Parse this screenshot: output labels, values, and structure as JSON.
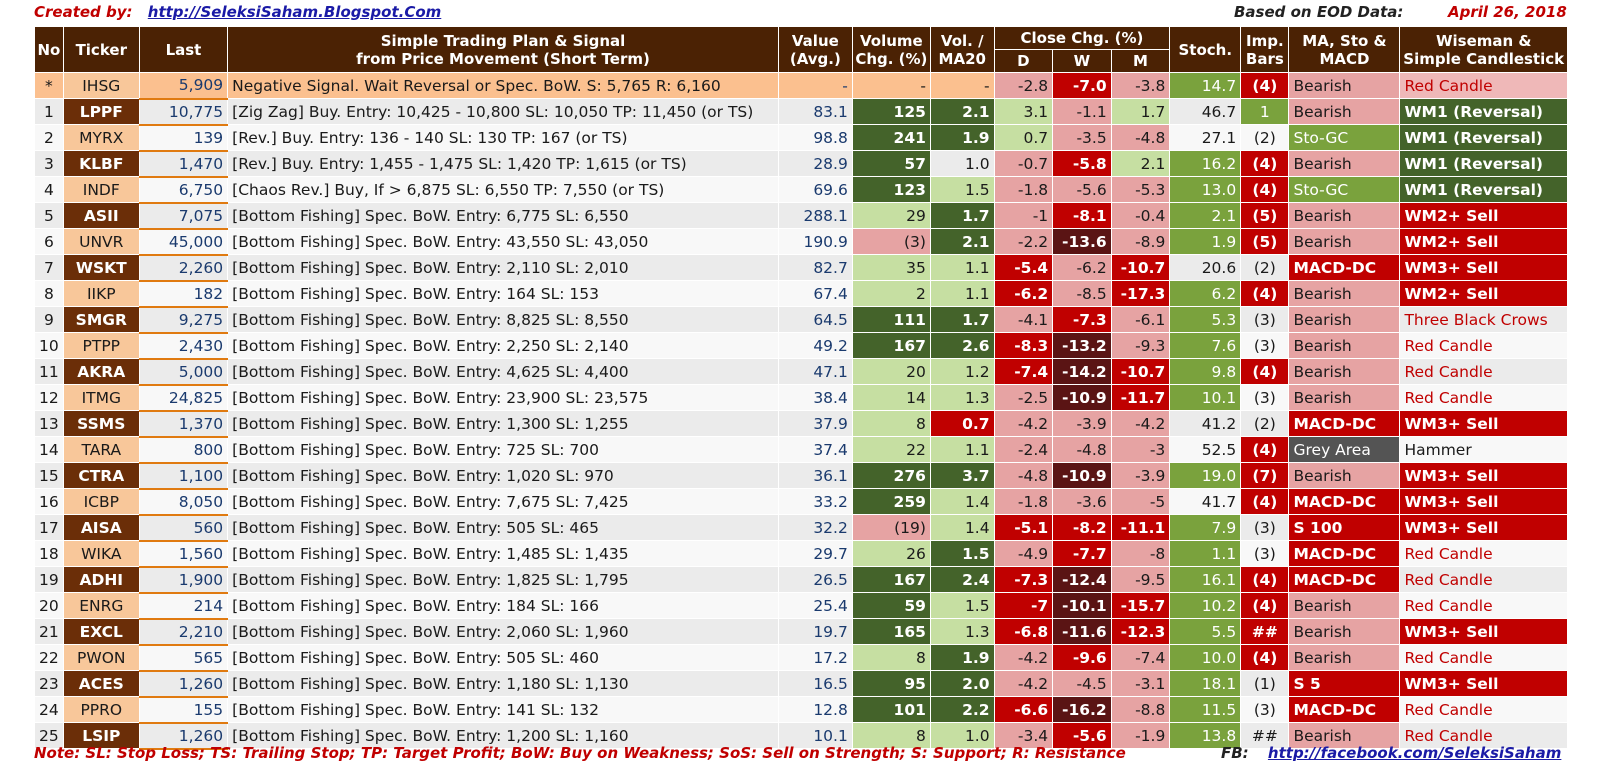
{
  "header": {
    "created_by_label": "Created by:",
    "created_by_link": "http://SeleksiSaham.Blogspot.Com",
    "based_on_label": "Based on EOD Data:",
    "date": "April 26, 2018"
  },
  "columns": {
    "no": "No",
    "ticker": "Ticker",
    "last": "Last",
    "plan": "Simple Trading Plan & Signal\nfrom Price Movement (Short Term)",
    "value": "Value\n(Avg.)",
    "volume": "Volume\nChg. (%)",
    "vol_ma20": "Vol. /\nMA20",
    "close_chg": "Close Chg. (%)",
    "close_d": "D",
    "close_w": "W",
    "close_m": "M",
    "stoch": "Stoch.",
    "imp": "Imp.\nBars",
    "ma": "MA, Sto &\nMACD",
    "wiseman": "Wiseman &\nSimple Candlestick"
  },
  "rows": [
    {
      "no": "*",
      "ticker": "IHSG",
      "last": "5,909",
      "plan": "Negative Signal.  Wait Reversal or Spec. BoW.  S:   5,765  R:  6,160",
      "value": "-",
      "volume": "-",
      "vol": "-",
      "d": "-2.8",
      "w": "-7.0",
      "m": "-3.8",
      "stoch": "14.7",
      "imp": "(4)",
      "ma": "Bearish",
      "ws": "Red Candle"
    },
    {
      "no": "1",
      "ticker": "LPPF",
      "last": "10,775",
      "plan": "[Zig Zag] Buy.  Entry: 10,425 - 10,800  SL: 10,050 TP: 11,450 (or TS)",
      "value": "83.1",
      "volume": "125",
      "vol": "2.1",
      "d": "3.1",
      "w": "-1.1",
      "m": "1.7",
      "stoch": "46.7",
      "imp": "1",
      "ma": "Bearish",
      "ws": "WM1 (Reversal)"
    },
    {
      "no": "2",
      "ticker": "MYRX",
      "last": "139",
      "plan": "[Rev.] Buy.  Entry:   136 -   140  SL:   130 TP:   167 (or TS)",
      "value": "98.8",
      "volume": "241",
      "vol": "1.9",
      "d": "0.7",
      "w": "-3.5",
      "m": "-4.8",
      "stoch": "27.1",
      "imp": "(2)",
      "ma": "Sto-GC",
      "ws": "WM1 (Reversal)"
    },
    {
      "no": "3",
      "ticker": "KLBF",
      "last": "1,470",
      "plan": "[Rev.] Buy.  Entry: 1,455 -  1,475  SL: 1,420 TP: 1,615 (or TS)",
      "value": "28.9",
      "volume": "57",
      "vol": "1.0",
      "d": "-0.7",
      "w": "-5.8",
      "m": "2.1",
      "stoch": "16.2",
      "imp": "(4)",
      "ma": "Bearish",
      "ws": "WM1 (Reversal)"
    },
    {
      "no": "4",
      "ticker": "INDF",
      "last": "6,750",
      "plan": "[Chaos Rev.] Buy, If >  6,875  SL: 6,550 TP: 7,550 (or TS)",
      "value": "69.6",
      "volume": "123",
      "vol": "1.5",
      "d": "-1.8",
      "w": "-5.6",
      "m": "-5.3",
      "stoch": "13.0",
      "imp": "(4)",
      "ma": "Sto-GC",
      "ws": "WM1 (Reversal)"
    },
    {
      "no": "5",
      "ticker": "ASII",
      "last": "7,075",
      "plan": "[Bottom Fishing]  Spec. BoW. Entry:  6,775  SL:  6,550",
      "value": "288.1",
      "volume": "29",
      "vol": "1.7",
      "d": "-1",
      "w": "-8.1",
      "m": "-0.4",
      "stoch": "2.1",
      "imp": "(5)",
      "ma": "Bearish",
      "ws": "WM2+ Sell"
    },
    {
      "no": "6",
      "ticker": "UNVR",
      "last": "45,000",
      "plan": "[Bottom Fishing]  Spec. BoW. Entry: 43,550  SL: 43,050",
      "value": "190.9",
      "volume": "(3)",
      "vol": "2.1",
      "d": "-2.2",
      "w": "-13.6",
      "m": "-8.9",
      "stoch": "1.9",
      "imp": "(5)",
      "ma": "Bearish",
      "ws": "WM2+ Sell"
    },
    {
      "no": "7",
      "ticker": "WSKT",
      "last": "2,260",
      "plan": "[Bottom Fishing]  Spec. BoW. Entry:  2,110  SL:  2,010",
      "value": "82.7",
      "volume": "35",
      "vol": "1.1",
      "d": "-5.4",
      "w": "-6.2",
      "m": "-10.7",
      "stoch": "20.6",
      "imp": "(2)",
      "ma": "MACD-DC",
      "ws": "WM3+ Sell"
    },
    {
      "no": "8",
      "ticker": "IIKP",
      "last": "182",
      "plan": "[Bottom Fishing]  Spec. BoW. Entry:   164  SL:   153",
      "value": "67.4",
      "volume": "2",
      "vol": "1.1",
      "d": "-6.2",
      "w": "-8.5",
      "m": "-17.3",
      "stoch": "6.2",
      "imp": "(4)",
      "ma": "Bearish",
      "ws": "WM2+ Sell"
    },
    {
      "no": "9",
      "ticker": "SMGR",
      "last": "9,275",
      "plan": "[Bottom Fishing]  Spec. BoW. Entry:  8,825  SL:  8,550",
      "value": "64.5",
      "volume": "111",
      "vol": "1.7",
      "d": "-4.1",
      "w": "-7.3",
      "m": "-6.1",
      "stoch": "5.3",
      "imp": "(3)",
      "ma": "Bearish",
      "ws": "Three Black Crows"
    },
    {
      "no": "10",
      "ticker": "PTPP",
      "last": "2,430",
      "plan": "[Bottom Fishing]  Spec. BoW. Entry:  2,250  SL:  2,140",
      "value": "49.2",
      "volume": "167",
      "vol": "2.6",
      "d": "-8.3",
      "w": "-13.2",
      "m": "-9.3",
      "stoch": "7.6",
      "imp": "(3)",
      "ma": "Bearish",
      "ws": "Red Candle"
    },
    {
      "no": "11",
      "ticker": "AKRA",
      "last": "5,000",
      "plan": "[Bottom Fishing]  Spec. BoW. Entry:  4,625  SL:  4,400",
      "value": "47.1",
      "volume": "20",
      "vol": "1.2",
      "d": "-7.4",
      "w": "-14.2",
      "m": "-10.7",
      "stoch": "9.8",
      "imp": "(4)",
      "ma": "Bearish",
      "ws": "Red Candle"
    },
    {
      "no": "12",
      "ticker": "ITMG",
      "last": "24,825",
      "plan": "[Bottom Fishing]  Spec. BoW. Entry: 23,900  SL: 23,575",
      "value": "38.4",
      "volume": "14",
      "vol": "1.3",
      "d": "-2.5",
      "w": "-10.9",
      "m": "-11.7",
      "stoch": "10.1",
      "imp": "(3)",
      "ma": "Bearish",
      "ws": "Red Candle"
    },
    {
      "no": "13",
      "ticker": "SSMS",
      "last": "1,370",
      "plan": "[Bottom Fishing]  Spec. BoW. Entry:  1,300  SL:  1,255",
      "value": "37.9",
      "volume": "8",
      "vol": "0.7",
      "d": "-4.2",
      "w": "-3.9",
      "m": "-4.2",
      "stoch": "41.2",
      "imp": "(2)",
      "ma": "MACD-DC",
      "ws": "WM3+ Sell"
    },
    {
      "no": "14",
      "ticker": "TARA",
      "last": "800",
      "plan": "[Bottom Fishing]  Spec. BoW. Entry:   725  SL:   700",
      "value": "37.4",
      "volume": "22",
      "vol": "1.1",
      "d": "-2.4",
      "w": "-4.8",
      "m": "-3",
      "stoch": "52.5",
      "imp": "(4)",
      "ma": "Grey Area",
      "ws": "Hammer"
    },
    {
      "no": "15",
      "ticker": "CTRA",
      "last": "1,100",
      "plan": "[Bottom Fishing]  Spec. BoW. Entry:  1,020  SL:   970",
      "value": "36.1",
      "volume": "276",
      "vol": "3.7",
      "d": "-4.8",
      "w": "-10.9",
      "m": "-3.9",
      "stoch": "19.0",
      "imp": "(7)",
      "ma": "Bearish",
      "ws": "WM3+ Sell"
    },
    {
      "no": "16",
      "ticker": "ICBP",
      "last": "8,050",
      "plan": "[Bottom Fishing]  Spec. BoW. Entry:  7,675  SL:  7,425",
      "value": "33.2",
      "volume": "259",
      "vol": "1.4",
      "d": "-1.8",
      "w": "-3.6",
      "m": "-5",
      "stoch": "41.7",
      "imp": "(4)",
      "ma": "MACD-DC",
      "ws": "WM3+ Sell"
    },
    {
      "no": "17",
      "ticker": "AISA",
      "last": "560",
      "plan": "[Bottom Fishing]  Spec. BoW. Entry:   505  SL:   465",
      "value": "32.2",
      "volume": "(19)",
      "vol": "1.4",
      "d": "-5.1",
      "w": "-8.2",
      "m": "-11.1",
      "stoch": "7.9",
      "imp": "(3)",
      "ma": "S 100",
      "ws": "WM3+ Sell"
    },
    {
      "no": "18",
      "ticker": "WIKA",
      "last": "1,560",
      "plan": "[Bottom Fishing]  Spec. BoW. Entry:  1,485  SL:  1,435",
      "value": "29.7",
      "volume": "26",
      "vol": "1.5",
      "d": "-4.9",
      "w": "-7.7",
      "m": "-8",
      "stoch": "1.1",
      "imp": "(3)",
      "ma": "MACD-DC",
      "ws": "Red Candle"
    },
    {
      "no": "19",
      "ticker": "ADHI",
      "last": "1,900",
      "plan": "[Bottom Fishing]  Spec. BoW. Entry:  1,825  SL:  1,795",
      "value": "26.5",
      "volume": "167",
      "vol": "2.4",
      "d": "-7.3",
      "w": "-12.4",
      "m": "-9.5",
      "stoch": "16.1",
      "imp": "(4)",
      "ma": "MACD-DC",
      "ws": "Red Candle"
    },
    {
      "no": "20",
      "ticker": "ENRG",
      "last": "214",
      "plan": "[Bottom Fishing]  Spec. BoW. Entry:   184  SL:   166",
      "value": "25.4",
      "volume": "59",
      "vol": "1.5",
      "d": "-7",
      "w": "-10.1",
      "m": "-15.7",
      "stoch": "10.2",
      "imp": "(4)",
      "ma": "Bearish",
      "ws": "Red Candle"
    },
    {
      "no": "21",
      "ticker": "EXCL",
      "last": "2,210",
      "plan": "[Bottom Fishing]  Spec. BoW. Entry:  2,060  SL:  1,960",
      "value": "19.7",
      "volume": "165",
      "vol": "1.3",
      "d": "-6.8",
      "w": "-11.6",
      "m": "-12.3",
      "stoch": "5.5",
      "imp": "##",
      "ma": "Bearish",
      "ws": "WM3+ Sell"
    },
    {
      "no": "22",
      "ticker": "PWON",
      "last": "565",
      "plan": "[Bottom Fishing]  Spec. BoW. Entry:   505  SL:   460",
      "value": "17.2",
      "volume": "8",
      "vol": "1.9",
      "d": "-4.2",
      "w": "-9.6",
      "m": "-7.4",
      "stoch": "10.0",
      "imp": "(4)",
      "ma": "Bearish",
      "ws": "Red Candle"
    },
    {
      "no": "23",
      "ticker": "ACES",
      "last": "1,260",
      "plan": "[Bottom Fishing]  Spec. BoW. Entry:  1,180  SL:  1,130",
      "value": "16.5",
      "volume": "95",
      "vol": "2.0",
      "d": "-4.2",
      "w": "-4.5",
      "m": "-3.1",
      "stoch": "18.1",
      "imp": "(1)",
      "ma": "S 5",
      "ws": "WM3+ Sell"
    },
    {
      "no": "24",
      "ticker": "PPRO",
      "last": "155",
      "plan": "[Bottom Fishing]  Spec. BoW. Entry:   141  SL:   132",
      "value": "12.8",
      "volume": "101",
      "vol": "2.2",
      "d": "-6.6",
      "w": "-16.2",
      "m": "-8.8",
      "stoch": "11.5",
      "imp": "(3)",
      "ma": "MACD-DC",
      "ws": "Red Candle"
    },
    {
      "no": "25",
      "ticker": "LSIP",
      "last": "1,260",
      "plan": "[Bottom Fishing]  Spec. BoW. Entry:  1,200  SL:  1,160",
      "value": "10.1",
      "volume": "8",
      "vol": "1.0",
      "d": "-3.4",
      "w": "-5.6",
      "m": "-1.9",
      "stoch": "13.8",
      "imp": "##",
      "ma": "Bearish",
      "ws": "Red Candle"
    }
  ],
  "styles": [
    {
      "tk": "light",
      "vol": "",
      "vr": "",
      "d": "pk",
      "w": "rd",
      "m": "pk",
      "st": "mid",
      "imp": "rd",
      "ma": "pk",
      "ws": "pkred"
    },
    {
      "tk": "brown",
      "vol": "dg",
      "vr": "dg",
      "d": "lg",
      "w": "pk",
      "m": "lg",
      "st": "",
      "imp": "mid",
      "ma": "pk",
      "ws": "dg"
    },
    {
      "tk": "light",
      "vol": "dg",
      "vr": "dg",
      "d": "lg",
      "w": "pk",
      "m": "pk",
      "st": "",
      "imp": "",
      "ma": "mid",
      "ws": "dg"
    },
    {
      "tk": "brown",
      "vol": "dg",
      "vr": "",
      "d": "pk",
      "w": "rd",
      "m": "lg",
      "st": "mid",
      "imp": "rd",
      "ma": "pk",
      "ws": "dg"
    },
    {
      "tk": "light",
      "vol": "dg",
      "vr": "lg",
      "d": "pk",
      "w": "pk",
      "m": "pk",
      "st": "mid",
      "imp": "rd",
      "ma": "mid",
      "ws": "dg"
    },
    {
      "tk": "brown",
      "vol": "lg",
      "vr": "dg",
      "d": "pk",
      "w": "rd",
      "m": "pk",
      "st": "mid",
      "imp": "rd",
      "ma": "pk",
      "ws": "rd"
    },
    {
      "tk": "light",
      "vol": "pk",
      "vr": "dg",
      "d": "pk",
      "w": "dr",
      "m": "pk",
      "st": "mid",
      "imp": "rd",
      "ma": "pk",
      "ws": "rd"
    },
    {
      "tk": "brown",
      "vol": "lg",
      "vr": "lg",
      "d": "rd",
      "w": "pk",
      "m": "rd",
      "st": "",
      "imp": "",
      "ma": "rd",
      "ws": "rd"
    },
    {
      "tk": "light",
      "vol": "lg",
      "vr": "lg",
      "d": "rd",
      "w": "pk",
      "m": "rd",
      "st": "mid",
      "imp": "rd",
      "ma": "pk",
      "ws": "rd"
    },
    {
      "tk": "brown",
      "vol": "dg",
      "vr": "dg",
      "d": "pk",
      "w": "rd",
      "m": "pk",
      "st": "mid",
      "imp": "",
      "ma": "pk",
      "ws": "whred"
    },
    {
      "tk": "light",
      "vol": "dg",
      "vr": "dg",
      "d": "rd",
      "w": "dr",
      "m": "pk",
      "st": "mid",
      "imp": "",
      "ma": "pk",
      "ws": "whred"
    },
    {
      "tk": "brown",
      "vol": "lg",
      "vr": "lg",
      "d": "rd",
      "w": "dr",
      "m": "rd",
      "st": "mid",
      "imp": "rd",
      "ma": "pk",
      "ws": "whred"
    },
    {
      "tk": "light",
      "vol": "lg",
      "vr": "lg",
      "d": "pk",
      "w": "dr",
      "m": "rd",
      "st": "mid",
      "imp": "",
      "ma": "pk",
      "ws": "whred"
    },
    {
      "tk": "brown",
      "vol": "lg",
      "vr": "rd",
      "d": "pk",
      "w": "pk",
      "m": "pk",
      "st": "",
      "imp": "",
      "ma": "rd",
      "ws": "rd"
    },
    {
      "tk": "light",
      "vol": "lg",
      "vr": "lg",
      "d": "pk",
      "w": "pk",
      "m": "pk",
      "st": "",
      "imp": "rd",
      "ma": "gray",
      "ws": ""
    },
    {
      "tk": "brown",
      "vol": "dg",
      "vr": "dg",
      "d": "pk",
      "w": "dr",
      "m": "pk",
      "st": "mid",
      "imp": "rd",
      "ma": "pk",
      "ws": "rd"
    },
    {
      "tk": "light",
      "vol": "dg",
      "vr": "lg",
      "d": "pk",
      "w": "pk",
      "m": "pk",
      "st": "",
      "imp": "rd",
      "ma": "rd",
      "ws": "rd"
    },
    {
      "tk": "brown",
      "vol": "pk",
      "vr": "lg",
      "d": "rd",
      "w": "rd",
      "m": "rd",
      "st": "mid",
      "imp": "",
      "ma": "rd",
      "ws": "rd"
    },
    {
      "tk": "light",
      "vol": "lg",
      "vr": "dg",
      "d": "pk",
      "w": "rd",
      "m": "pk",
      "st": "mid",
      "imp": "",
      "ma": "rd",
      "ws": "whred"
    },
    {
      "tk": "brown",
      "vol": "dg",
      "vr": "dg",
      "d": "rd",
      "w": "dr",
      "m": "pk",
      "st": "mid",
      "imp": "rd",
      "ma": "rd",
      "ws": "whred"
    },
    {
      "tk": "light",
      "vol": "dg",
      "vr": "lg",
      "d": "rd",
      "w": "dr",
      "m": "rd",
      "st": "mid",
      "imp": "rd",
      "ma": "pk",
      "ws": "whred"
    },
    {
      "tk": "brown",
      "vol": "dg",
      "vr": "lg",
      "d": "rd",
      "w": "dr",
      "m": "rd",
      "st": "mid",
      "imp": "rd",
      "ma": "pk",
      "ws": "rd"
    },
    {
      "tk": "light",
      "vol": "lg",
      "vr": "dg",
      "d": "pk",
      "w": "rd",
      "m": "pk",
      "st": "mid",
      "imp": "rd",
      "ma": "pk",
      "ws": "whred"
    },
    {
      "tk": "brown",
      "vol": "dg",
      "vr": "dg",
      "d": "pk",
      "w": "pk",
      "m": "pk",
      "st": "mid",
      "imp": "",
      "ma": "rd",
      "ws": "rd"
    },
    {
      "tk": "light",
      "vol": "dg",
      "vr": "dg",
      "d": "rd",
      "w": "dr",
      "m": "pk",
      "st": "mid",
      "imp": "",
      "ma": "rd",
      "ws": "whred"
    },
    {
      "tk": "brown",
      "vol": "lg",
      "vr": "lg",
      "d": "pk",
      "w": "rd",
      "m": "pk",
      "st": "mid",
      "imp": "",
      "ma": "pk",
      "ws": "whred"
    }
  ],
  "footer": {
    "note": "Note:  SL: Stop Loss; TS: Trailing Stop; TP: Target Profit; BoW: Buy on Weakness; SoS: Sell on Strength; S: Support; R: Resistance",
    "fb_label": "FB:",
    "fb_link": "http://facebook.com/SeleksiSaham"
  }
}
